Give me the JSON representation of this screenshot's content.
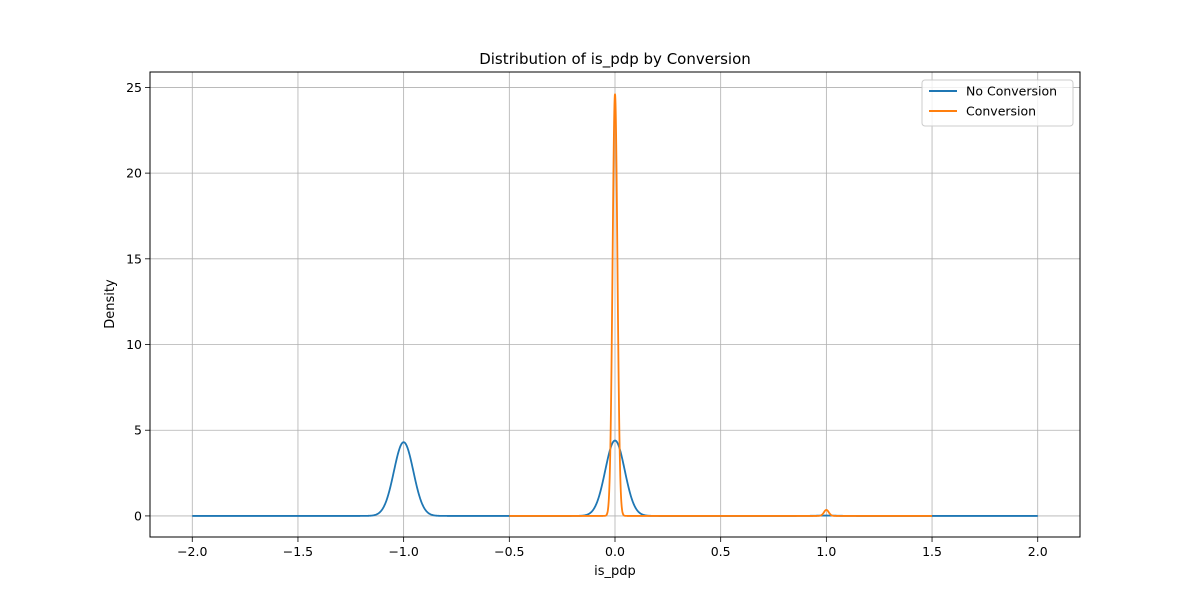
{
  "chart_data": {
    "type": "line",
    "title": "Distribution of is_pdp by Conversion",
    "xlabel": "is_pdp",
    "ylabel": "Density",
    "xlim": [
      -2.2,
      2.2
    ],
    "ylim": [
      -1.23,
      25.9
    ],
    "xticks": [
      -2.0,
      -1.5,
      -1.0,
      -0.5,
      0.0,
      0.5,
      1.0,
      1.5,
      2.0
    ],
    "xtick_labels": [
      "−2.0",
      "−1.5",
      "−1.0",
      "−0.5",
      "0.0",
      "0.5",
      "1.0",
      "1.5",
      "2.0"
    ],
    "yticks": [
      0,
      5,
      10,
      15,
      20,
      25
    ],
    "ytick_labels": [
      "0",
      "5",
      "10",
      "15",
      "20",
      "25"
    ],
    "grid": true,
    "legend_position": "top-right",
    "series": [
      {
        "name": "No Conversion",
        "color": "#1f77b4",
        "x_range": [
          -2.0,
          2.0
        ],
        "peaks": [
          {
            "center": -1.0,
            "height": 4.3,
            "sigma": 0.046
          },
          {
            "center": 0.0,
            "height": 4.4,
            "sigma": 0.046
          },
          {
            "center": 1.0,
            "height": 0.02,
            "sigma": 0.046
          }
        ]
      },
      {
        "name": "Conversion",
        "color": "#ff7f0e",
        "x_range": [
          -0.5,
          1.5
        ],
        "peaks": [
          {
            "center": 0.0,
            "height": 24.6,
            "sigma": 0.0115
          },
          {
            "center": 1.0,
            "height": 0.35,
            "sigma": 0.0115
          }
        ]
      }
    ]
  }
}
